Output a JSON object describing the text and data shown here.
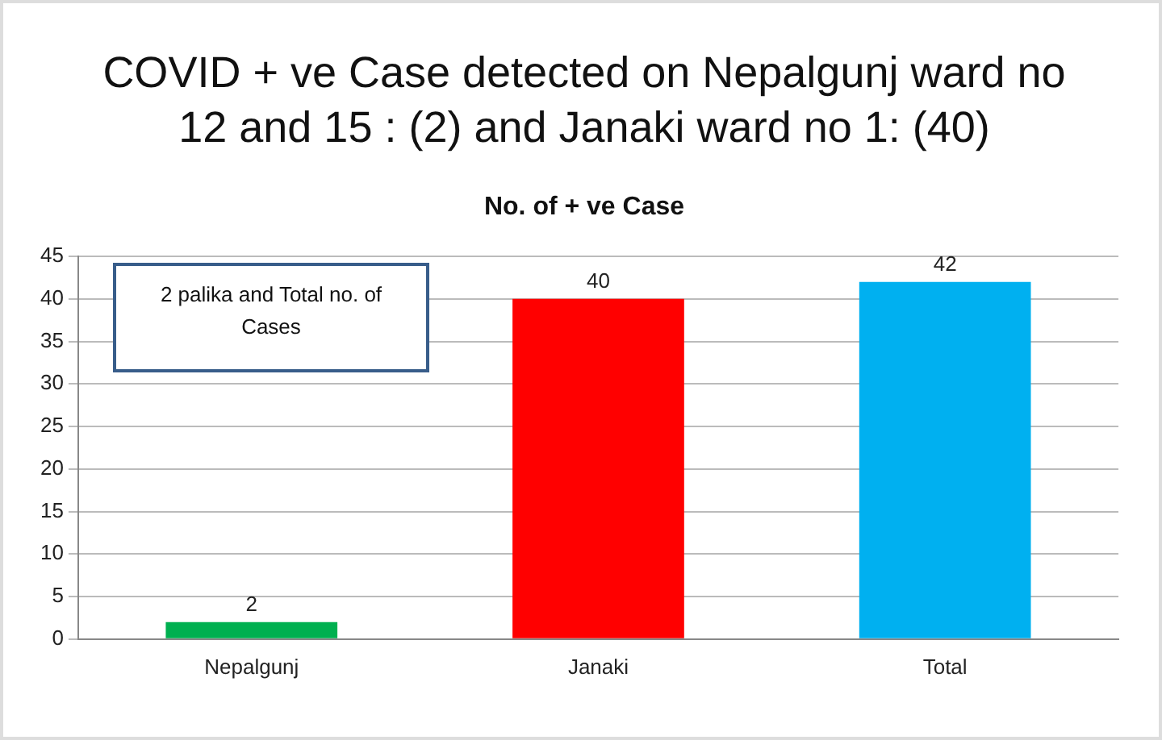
{
  "chart_data": {
    "type": "bar",
    "title": "COVID + ve Case detected on Nepalgunj ward no 12 and 15 : (2) and Janaki ward no 1:  (40)",
    "subtitle": "No. of + ve Case",
    "categories": [
      "Nepalgunj",
      "Janaki",
      "Total"
    ],
    "values": [
      2,
      40,
      42
    ],
    "colors": [
      "#00b050",
      "#ff0000",
      "#00b0f0"
    ],
    "ylim": [
      0,
      45
    ],
    "yticks": [
      0,
      5,
      10,
      15,
      20,
      25,
      30,
      35,
      40,
      45
    ],
    "grid": "y",
    "data_labels": true,
    "annotations": [
      "2 palika and Total no. of Cases"
    ]
  }
}
